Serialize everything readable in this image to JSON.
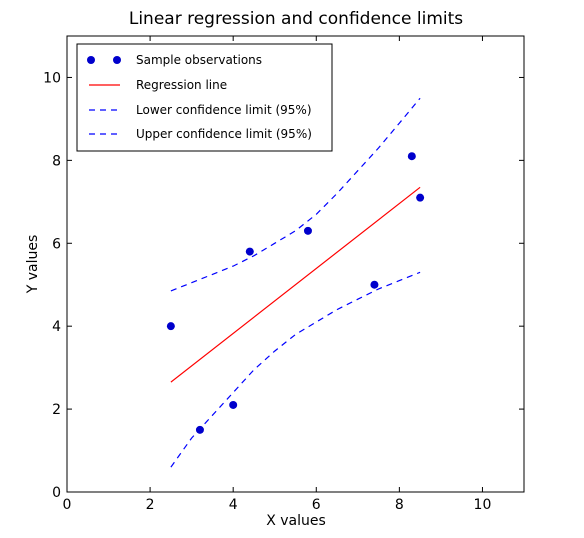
{
  "chart_data": {
    "type": "scatter",
    "title": "Linear regression and confidence limits",
    "xlabel": "X values",
    "ylabel": "Y values",
    "xlim": [
      0,
      11
    ],
    "ylim": [
      0,
      11
    ],
    "xticks": [
      0,
      2,
      4,
      6,
      8,
      10
    ],
    "yticks": [
      0,
      2,
      4,
      6,
      8,
      10
    ],
    "grid": false,
    "legend_position": "top-left",
    "series": [
      {
        "name": "Sample observations",
        "kind": "points",
        "color": "#0000cc",
        "x": [
          2.5,
          3.2,
          4.0,
          4.4,
          5.8,
          7.4,
          8.3,
          8.5
        ],
        "y": [
          4.0,
          1.5,
          2.1,
          5.8,
          6.3,
          5.0,
          8.1,
          7.1
        ]
      },
      {
        "name": "Regression line",
        "kind": "line",
        "style": "solid",
        "color": "#ff0000",
        "x": [
          2.5,
          8.5
        ],
        "y": [
          2.65,
          7.35
        ]
      },
      {
        "name": "Lower confidence limit (95%)",
        "kind": "line",
        "style": "dashed",
        "color": "#0000ff",
        "x": [
          2.5,
          3.0,
          3.5,
          4.0,
          4.5,
          5.0,
          5.5,
          6.0,
          6.5,
          7.0,
          7.5,
          8.0,
          8.5
        ],
        "y": [
          0.6,
          1.3,
          1.85,
          2.4,
          2.95,
          3.4,
          3.8,
          4.1,
          4.4,
          4.65,
          4.9,
          5.1,
          5.3
        ]
      },
      {
        "name": "Upper confidence limit (95%)",
        "kind": "line",
        "style": "dashed",
        "color": "#0000ff",
        "x": [
          2.5,
          3.0,
          3.5,
          4.0,
          4.5,
          5.0,
          5.5,
          6.0,
          6.5,
          7.0,
          7.5,
          8.0,
          8.5
        ],
        "y": [
          4.85,
          5.05,
          5.25,
          5.45,
          5.7,
          6.0,
          6.3,
          6.7,
          7.2,
          7.75,
          8.3,
          8.9,
          9.5
        ]
      }
    ]
  }
}
